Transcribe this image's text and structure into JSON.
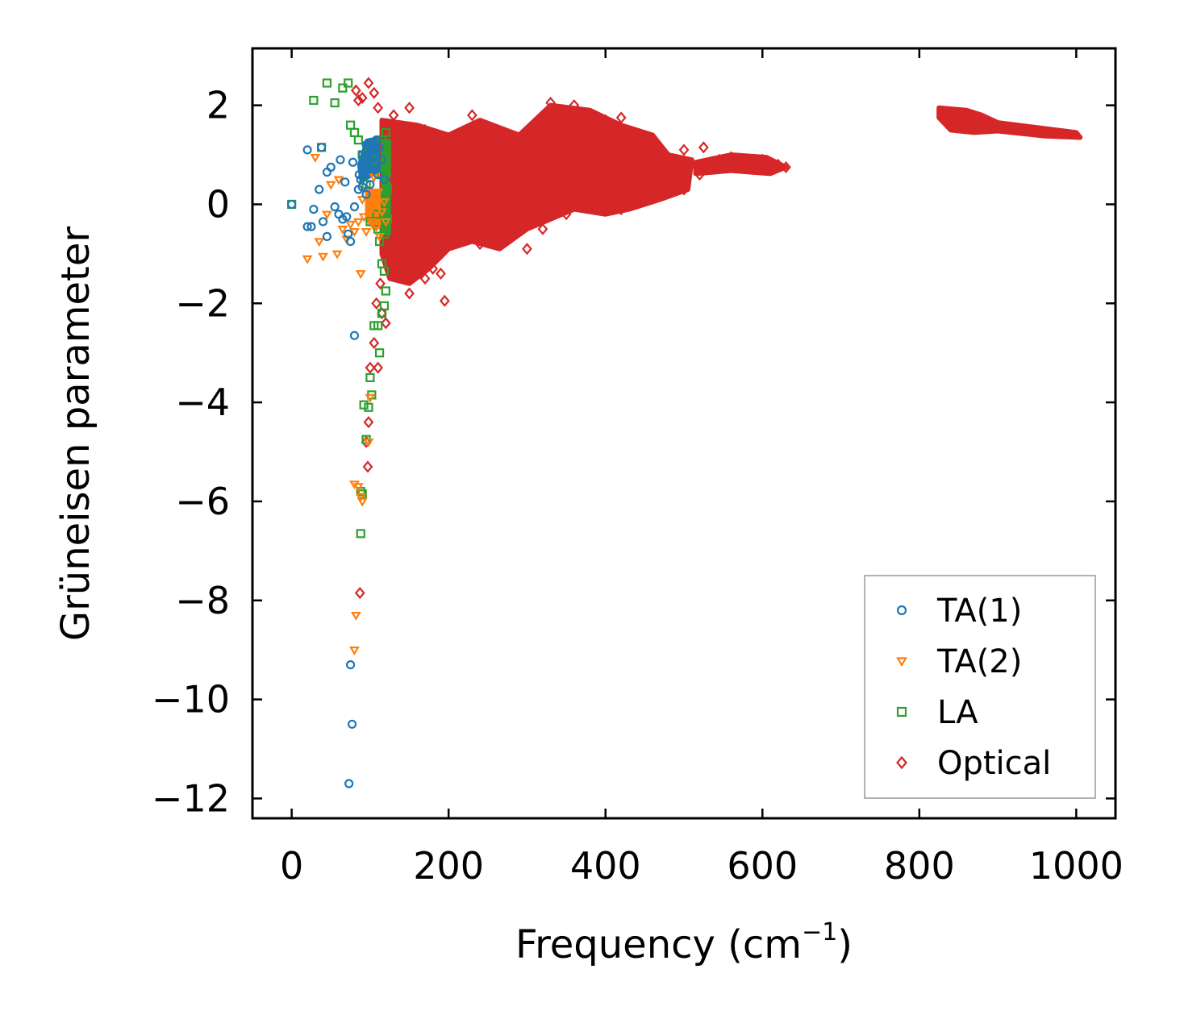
{
  "chart_data": {
    "type": "scatter",
    "title": "",
    "xlabel": "Frequency (cm",
    "xlabel_sup": "−1",
    "xlabel_tail": ")",
    "ylabel": "Grüneisen parameter",
    "xlim": [
      -50,
      1050
    ],
    "ylim": [
      -12.4,
      3.15
    ],
    "x_ticks": [
      0,
      200,
      400,
      600,
      800,
      1000
    ],
    "x_tick_labels": [
      "0",
      "200",
      "400",
      "600",
      "800",
      "1000"
    ],
    "y_ticks": [
      -12,
      -10,
      -8,
      -6,
      -4,
      -2,
      0,
      2
    ],
    "y_tick_labels": [
      "−12",
      "−10",
      "−8",
      "−6",
      "−4",
      "−2",
      "0",
      "2"
    ],
    "legend_position": "lower-right",
    "series": [
      {
        "name": "TA(1)",
        "marker": "circle",
        "color": "#1f77b4",
        "points": [
          [
            0,
            0
          ],
          [
            20,
            1.1
          ],
          [
            20,
            -0.45
          ],
          [
            25,
            -0.45
          ],
          [
            28,
            -0.1
          ],
          [
            35,
            0.3
          ],
          [
            38,
            1.15
          ],
          [
            40,
            -0.35
          ],
          [
            45,
            -0.65
          ],
          [
            45,
            0.65
          ],
          [
            50,
            0.75
          ],
          [
            55,
            -0.05
          ],
          [
            60,
            -0.2
          ],
          [
            62,
            0.9
          ],
          [
            65,
            -0.3
          ],
          [
            68,
            0.45
          ],
          [
            70,
            -0.25
          ],
          [
            72,
            -0.6
          ],
          [
            75,
            -0.75
          ],
          [
            78,
            0.85
          ],
          [
            80,
            -0.05
          ],
          [
            80,
            -2.65
          ],
          [
            75,
            -9.3
          ],
          [
            77,
            -10.5
          ],
          [
            73,
            -11.7
          ],
          [
            85,
            0.3
          ],
          [
            88,
            0.5
          ],
          [
            90,
            1.0
          ],
          [
            92,
            0.7
          ],
          [
            95,
            1.2
          ],
          [
            97,
            0.9
          ],
          [
            100,
            0.4
          ],
          [
            102,
            1.1
          ],
          [
            105,
            0.8
          ],
          [
            108,
            1.3
          ],
          [
            110,
            0.6
          ],
          [
            95,
            0.2
          ],
          [
            98,
            1.0
          ],
          [
            100,
            1.25
          ],
          [
            104,
            0.95
          ],
          [
            106,
            0.7
          ],
          [
            90,
            0.35
          ],
          [
            86,
            0.6
          ],
          [
            112,
            1.15
          ],
          [
            115,
            0.9
          ],
          [
            118,
            0.5
          ]
        ]
      },
      {
        "name": "TA(2)",
        "marker": "triangle-down",
        "color": "#ff7f0e",
        "points": [
          [
            20,
            -1.1
          ],
          [
            30,
            0.95
          ],
          [
            35,
            -0.75
          ],
          [
            40,
            -1.05
          ],
          [
            45,
            -0.2
          ],
          [
            50,
            0.4
          ],
          [
            58,
            -1.0
          ],
          [
            60,
            0.5
          ],
          [
            65,
            -0.5
          ],
          [
            70,
            -0.7
          ],
          [
            75,
            -0.4
          ],
          [
            80,
            -0.55
          ],
          [
            85,
            -0.35
          ],
          [
            88,
            -1.4
          ],
          [
            90,
            0.1
          ],
          [
            92,
            -0.25
          ],
          [
            95,
            -0.55
          ],
          [
            98,
            0.25
          ],
          [
            100,
            -0.15
          ],
          [
            102,
            -0.35
          ],
          [
            105,
            0.55
          ],
          [
            108,
            -0.45
          ],
          [
            110,
            0.25
          ],
          [
            112,
            -0.65
          ],
          [
            115,
            -0.15
          ],
          [
            118,
            0.05
          ],
          [
            120,
            -0.35
          ],
          [
            100,
            -3.9
          ],
          [
            98,
            -4.8
          ],
          [
            80,
            -5.65
          ],
          [
            85,
            -5.7
          ],
          [
            88,
            -5.9
          ],
          [
            90,
            -6.0
          ],
          [
            82,
            -8.3
          ],
          [
            80,
            -9.0
          ]
        ]
      },
      {
        "name": "LA",
        "marker": "square",
        "color": "#2ca02c",
        "points": [
          [
            0,
            0
          ],
          [
            28,
            2.1
          ],
          [
            38,
            1.15
          ],
          [
            45,
            2.45
          ],
          [
            55,
            2.05
          ],
          [
            65,
            2.35
          ],
          [
            72,
            2.45
          ],
          [
            75,
            1.6
          ],
          [
            80,
            1.45
          ],
          [
            85,
            1.3
          ],
          [
            90,
            1.0
          ],
          [
            95,
            0.4
          ],
          [
            100,
            -0.35
          ],
          [
            105,
            0.9
          ],
          [
            108,
            -0.2
          ],
          [
            110,
            -0.5
          ],
          [
            112,
            -0.75
          ],
          [
            115,
            -1.2
          ],
          [
            118,
            -1.35
          ],
          [
            120,
            -1.75
          ],
          [
            115,
            1.3
          ],
          [
            120,
            1.45
          ],
          [
            122,
            0.3
          ],
          [
            110,
            -2.45
          ],
          [
            115,
            -2.2
          ],
          [
            118,
            -2.05
          ],
          [
            112,
            -3.0
          ],
          [
            105,
            -2.45
          ],
          [
            102,
            -3.85
          ],
          [
            100,
            -3.5
          ],
          [
            98,
            -4.1
          ],
          [
            92,
            -4.05
          ],
          [
            95,
            -4.75
          ],
          [
            88,
            -5.8
          ],
          [
            90,
            -5.85
          ],
          [
            88,
            -6.65
          ],
          [
            122,
            -0.3
          ],
          [
            120,
            0.1
          ],
          [
            118,
            -0.6
          ],
          [
            115,
            0.6
          ]
        ]
      },
      {
        "name": "Optical",
        "marker": "diamond",
        "color": "#d62728",
        "points": [
          [
            98,
            2.45
          ],
          [
            82,
            2.3
          ],
          [
            85,
            2.1
          ],
          [
            90,
            2.15
          ],
          [
            105,
            2.25
          ],
          [
            110,
            1.95
          ],
          [
            130,
            1.8
          ],
          [
            150,
            1.95
          ],
          [
            170,
            1.5
          ],
          [
            180,
            1.3
          ],
          [
            230,
            1.8
          ],
          [
            240,
            1.4
          ],
          [
            260,
            1.5
          ],
          [
            330,
            2.05
          ],
          [
            360,
            2.0
          ],
          [
            400,
            1.7
          ],
          [
            420,
            1.75
          ],
          [
            450,
            1.2
          ],
          [
            470,
            0.9
          ],
          [
            490,
            0.6
          ],
          [
            525,
            1.15
          ],
          [
            500,
            1.1
          ],
          [
            150,
            -1.8
          ],
          [
            170,
            -1.5
          ],
          [
            180,
            -1.3
          ],
          [
            190,
            -1.4
          ],
          [
            195,
            -1.95
          ],
          [
            200,
            -0.6
          ],
          [
            220,
            -0.4
          ],
          [
            240,
            -0.8
          ],
          [
            250,
            -0.5
          ],
          [
            300,
            -0.9
          ],
          [
            320,
            -0.5
          ],
          [
            350,
            -0.2
          ],
          [
            420,
            -0.1
          ],
          [
            450,
            0.1
          ],
          [
            500,
            0.3
          ],
          [
            520,
            0.6
          ],
          [
            545,
            0.9
          ],
          [
            560,
            0.95
          ],
          [
            580,
            0.9
          ],
          [
            600,
            0.9
          ],
          [
            620,
            0.8
          ],
          [
            630,
            0.75
          ],
          [
            100,
            -3.3
          ],
          [
            105,
            -2.8
          ],
          [
            110,
            -3.3
          ],
          [
            98,
            -4.4
          ],
          [
            95,
            -4.8
          ],
          [
            97,
            -5.3
          ],
          [
            87,
            -7.85
          ],
          [
            120,
            -2.4
          ],
          [
            115,
            -2.2
          ],
          [
            108,
            -2.0
          ],
          [
            113,
            -1.6
          ],
          [
            125,
            -1.2
          ],
          [
            140,
            -1.0
          ],
          [
            160,
            -0.9
          ],
          [
            130,
            0.5
          ],
          [
            160,
            0.8
          ],
          [
            200,
            1.0
          ],
          [
            280,
            1.1
          ],
          [
            380,
            1.3
          ],
          [
            430,
            0.7
          ],
          [
            480,
            0.5
          ],
          [
            180,
            0.3
          ],
          [
            220,
            0.2
          ],
          [
            260,
            0.6
          ],
          [
            300,
            0.4
          ],
          [
            340,
            0.9
          ],
          [
            370,
            0.5
          ],
          [
            410,
            0.3
          ],
          [
            460,
            0.4
          ],
          [
            140,
            0.0
          ],
          [
            150,
            -0.3
          ],
          [
            170,
            0.1
          ],
          [
            210,
            -0.2
          ],
          [
            240,
            0.0
          ],
          [
            270,
            -0.1
          ],
          [
            310,
            0.2
          ],
          [
            350,
            0.6
          ],
          [
            390,
            0.1
          ]
        ]
      }
    ],
    "optical_regions": [
      [
        [
          115,
          1.7
        ],
        [
          160,
          1.6
        ],
        [
          200,
          1.4
        ],
        [
          240,
          1.7
        ],
        [
          290,
          1.4
        ],
        [
          330,
          2.0
        ],
        [
          380,
          1.9
        ],
        [
          420,
          1.6
        ],
        [
          460,
          1.4
        ],
        [
          480,
          1.0
        ],
        [
          510,
          0.9
        ],
        [
          505,
          0.3
        ],
        [
          470,
          0.1
        ],
        [
          430,
          -0.1
        ],
        [
          400,
          -0.2
        ],
        [
          360,
          -0.1
        ],
        [
          330,
          -0.3
        ],
        [
          300,
          -0.5
        ],
        [
          265,
          -0.9
        ],
        [
          230,
          -0.75
        ],
        [
          200,
          -0.9
        ],
        [
          175,
          -1.3
        ],
        [
          150,
          -1.6
        ],
        [
          125,
          -1.5
        ],
        [
          115,
          -1.0
        ]
      ],
      [
        [
          515,
          0.85
        ],
        [
          560,
          1.0
        ],
        [
          605,
          0.95
        ],
        [
          630,
          0.75
        ],
        [
          610,
          0.62
        ],
        [
          560,
          0.68
        ],
        [
          515,
          0.62
        ]
      ],
      [
        [
          825,
          1.95
        ],
        [
          860,
          1.9
        ],
        [
          880,
          1.8
        ],
        [
          900,
          1.65
        ],
        [
          950,
          1.55
        ],
        [
          1000,
          1.45
        ],
        [
          1005,
          1.35
        ],
        [
          960,
          1.38
        ],
        [
          900,
          1.48
        ],
        [
          870,
          1.45
        ],
        [
          840,
          1.5
        ],
        [
          825,
          1.75
        ]
      ]
    ],
    "acoustic_core_regions": [
      {
        "color": "#1f77b4",
        "polygon": [
          [
            85,
            0.8
          ],
          [
            95,
            1.3
          ],
          [
            110,
            1.35
          ],
          [
            112,
            0.7
          ],
          [
            100,
            0.55
          ],
          [
            88,
            0.45
          ]
        ]
      },
      {
        "color": "#ff7f0e",
        "polygon": [
          [
            95,
            0.25
          ],
          [
            120,
            0.3
          ],
          [
            122,
            -0.4
          ],
          [
            105,
            -0.5
          ],
          [
            95,
            -0.3
          ]
        ]
      },
      {
        "color": "#2ca02c",
        "polygon": [
          [
            115,
            1.3
          ],
          [
            125,
            1.3
          ],
          [
            125,
            -0.6
          ],
          [
            115,
            -0.6
          ]
        ]
      }
    ]
  }
}
